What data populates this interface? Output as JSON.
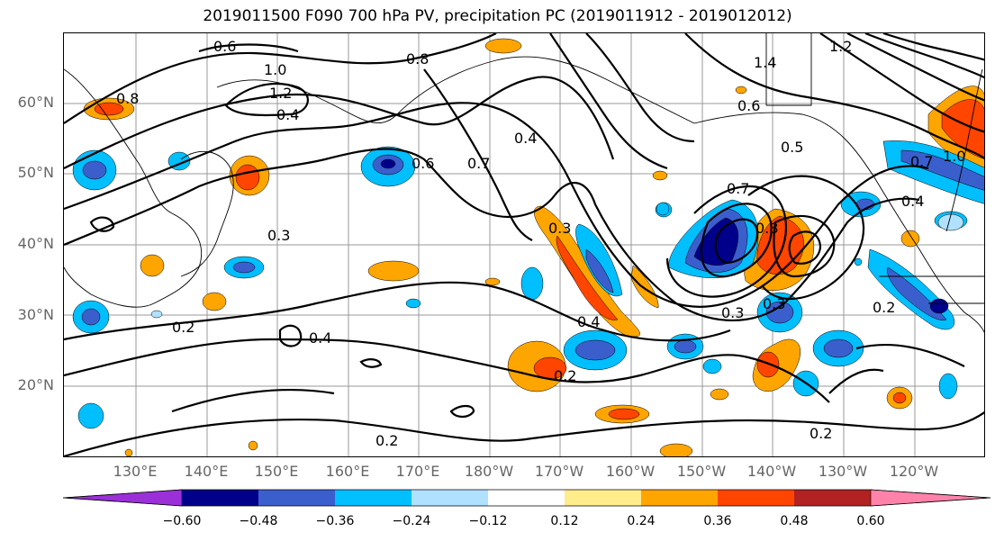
{
  "title": "2019011500 F090 700 hPa PV, precipitation PC (2019011912 - 2019012012)",
  "lat_labels": [
    "60°N",
    "50°N",
    "40°N",
    "30°N",
    "20°N"
  ],
  "lon_labels": [
    "130°E",
    "140°E",
    "150°E",
    "160°E",
    "170°E",
    "180°W",
    "170°W",
    "160°W",
    "150°W",
    "140°W",
    "130°W",
    "120°W"
  ],
  "contour_labels": [
    "0.6",
    "1.0",
    "1.2",
    "0.8",
    "0.4",
    "0.8",
    "0.6",
    "0.7",
    "0.4",
    "0.3",
    "0.3",
    "0.2",
    "0.4",
    "0.4",
    "0.2",
    "0.2",
    "0.2",
    "0.3",
    "0.3",
    "0.7",
    "0.8",
    "0.6",
    "0.5",
    "1.4",
    "0.7",
    "0.4",
    "0.2",
    "1.0",
    "1.2"
  ],
  "colorbar": {
    "ticks": [
      "−0.60",
      "−0.48",
      "−0.36",
      "−0.24",
      "−0.12",
      "0.12",
      "0.24",
      "0.36",
      "0.48",
      "0.60"
    ],
    "colors": [
      "#9b30d9",
      "#00008b",
      "#3a5fcd",
      "#00bfff",
      "#b0e2ff",
      "#ffffff",
      "#ffec8b",
      "#ffa500",
      "#ff4500",
      "#b22222",
      "#ff82ab"
    ]
  },
  "colors": {
    "contour": "#000000",
    "grid": "#999999",
    "coast": "#000000"
  }
}
